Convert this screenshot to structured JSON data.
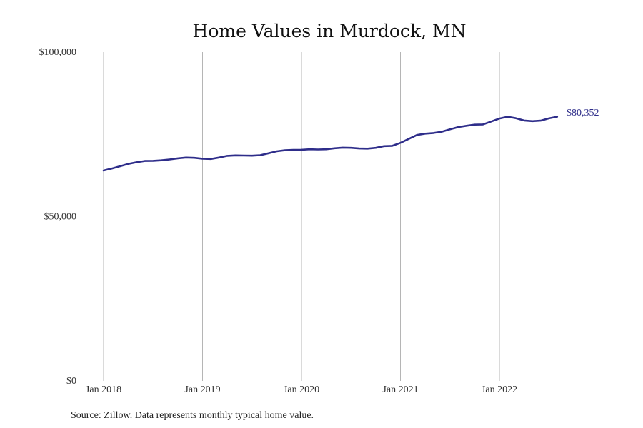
{
  "chart_data": {
    "type": "line",
    "title": "Home Values in Murdock, MN",
    "xlabel": "",
    "ylabel": "",
    "ylim": [
      0,
      100000
    ],
    "y_ticks": [
      {
        "value": 0,
        "label": "$0"
      },
      {
        "value": 50000,
        "label": "$50,000"
      },
      {
        "value": 100000,
        "label": "$100,000"
      }
    ],
    "x_ticks": [
      {
        "value": "2018-01",
        "label": "Jan 2018"
      },
      {
        "value": "2019-01",
        "label": "Jan 2019"
      },
      {
        "value": "2020-01",
        "label": "Jan 2020"
      },
      {
        "value": "2021-01",
        "label": "Jan 2021"
      },
      {
        "value": "2022-01",
        "label": "Jan 2022"
      }
    ],
    "x_grid": true,
    "y_grid": false,
    "line_color": "#2e2d8a",
    "end_label": "$80,352",
    "series": [
      {
        "x": [
          "2018-01",
          "2018-02",
          "2018-03",
          "2018-04",
          "2018-05",
          "2018-06",
          "2018-07",
          "2018-08",
          "2018-09",
          "2018-10",
          "2018-11",
          "2018-12",
          "2019-01",
          "2019-02",
          "2019-03",
          "2019-04",
          "2019-05",
          "2019-06",
          "2019-07",
          "2019-08",
          "2019-09",
          "2019-10",
          "2019-11",
          "2019-12",
          "2020-01",
          "2020-02",
          "2020-03",
          "2020-04",
          "2020-05",
          "2020-06",
          "2020-07",
          "2020-08",
          "2020-09",
          "2020-10",
          "2020-11",
          "2020-12",
          "2021-01",
          "2021-02",
          "2021-03",
          "2021-04",
          "2021-05",
          "2021-06",
          "2021-07",
          "2021-08",
          "2021-09",
          "2021-10",
          "2021-11",
          "2021-12",
          "2022-01",
          "2022-02",
          "2022-03",
          "2022-04",
          "2022-05",
          "2022-06",
          "2022-07",
          "2022-08"
        ],
        "values": [
          64000,
          64600,
          65300,
          66000,
          66500,
          66900,
          66950,
          67100,
          67350,
          67700,
          67950,
          67850,
          67600,
          67500,
          67950,
          68450,
          68600,
          68550,
          68500,
          68650,
          69250,
          69850,
          70150,
          70250,
          70300,
          70450,
          70400,
          70450,
          70750,
          70950,
          70900,
          70700,
          70650,
          70900,
          71400,
          71500,
          72400,
          73600,
          74800,
          75200,
          75400,
          75800,
          76500,
          77200,
          77600,
          77950,
          78000,
          78900,
          79800,
          80350,
          79900,
          79200,
          79000,
          79150,
          79850,
          80352
        ]
      }
    ],
    "source": "Source: Zillow. Data represents monthly typical home value."
  }
}
